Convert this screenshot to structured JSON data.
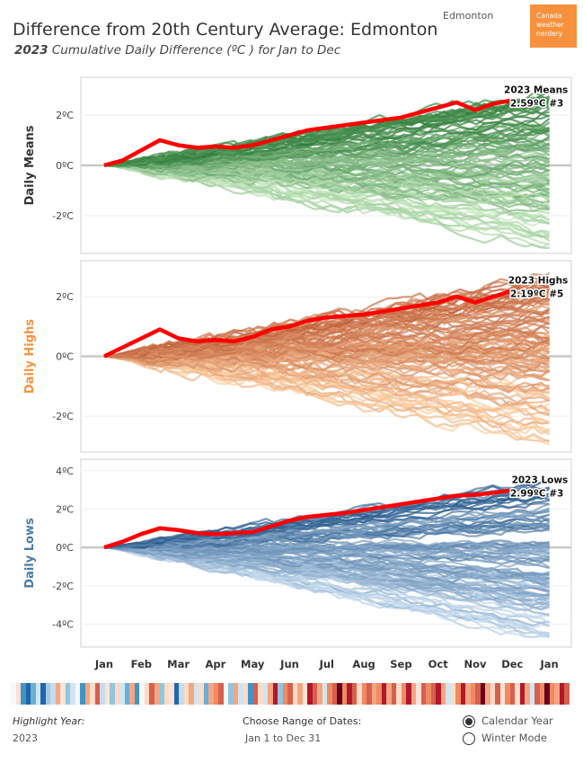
{
  "header": {
    "title": "Difference from 20th Century Average: Edmonton",
    "subtitle_year": "2023",
    "subtitle_rest": "Cumulative Daily Difference (ºC ) for Jan to Dec",
    "city": "Edmonton",
    "brand_lines": [
      "Canada",
      "weather",
      "nerdery"
    ]
  },
  "colors": {
    "means_dark": "#2f7d3a",
    "means_light": "#c7e9c0",
    "highs_dark": "#c0603a",
    "highs_light": "#fdd0a2",
    "lows_dark": "#2c5e8f",
    "lows_light": "#c6dbef",
    "highlight": "#ff0000",
    "highs_label": "#f7913d",
    "lows_label": "#4a7ba6"
  },
  "chart_data": [
    {
      "type": "line",
      "ylabel": "Daily Means",
      "ylim": [
        -3.5,
        3.5
      ],
      "yticks": [
        2,
        0,
        -2
      ],
      "tick_labels": [
        "2ºC",
        "0ºC",
        "-2ºC"
      ],
      "x_months": [
        "Jan",
        "Feb",
        "Mar",
        "Apr",
        "May",
        "Jun",
        "Jul",
        "Aug",
        "Sep",
        "Oct",
        "Nov",
        "Dec",
        "Jan"
      ],
      "highlight": {
        "year": "2023",
        "x": [
          0,
          0.5,
          1,
          1.5,
          2,
          2.5,
          3,
          3.5,
          4,
          4.5,
          5,
          5.5,
          6,
          6.5,
          7,
          7.5,
          8,
          8.5,
          9,
          9.5,
          10,
          10.5,
          11
        ],
        "y": [
          0,
          0.2,
          0.6,
          1.0,
          0.8,
          0.7,
          0.75,
          0.7,
          0.8,
          1.0,
          1.2,
          1.4,
          1.5,
          1.6,
          1.7,
          1.8,
          1.9,
          2.1,
          2.3,
          2.5,
          2.2,
          2.45,
          2.59
        ]
      },
      "annotation": [
        "2023 Means",
        "2.59ºC #3"
      ],
      "band": {
        "final_max": 3.2,
        "final_min": -3.3,
        "count": 110
      }
    },
    {
      "type": "line",
      "ylabel": "Daily Highs",
      "ylim": [
        -3.2,
        3.2
      ],
      "yticks": [
        2,
        0,
        -2
      ],
      "tick_labels": [
        "2ºC",
        "0ºC",
        "-2ºC"
      ],
      "x_months": [
        "Jan",
        "Feb",
        "Mar",
        "Apr",
        "May",
        "Jun",
        "Jul",
        "Aug",
        "Sep",
        "Oct",
        "Nov",
        "Dec",
        "Jan"
      ],
      "highlight": {
        "year": "2023",
        "x": [
          0,
          0.5,
          1,
          1.5,
          2,
          2.5,
          3,
          3.5,
          4,
          4.5,
          5,
          5.5,
          6,
          6.5,
          7,
          7.5,
          8,
          8.5,
          9,
          9.5,
          10,
          10.5,
          11
        ],
        "y": [
          0,
          0.3,
          0.6,
          0.9,
          0.6,
          0.5,
          0.55,
          0.5,
          0.65,
          0.9,
          1.0,
          1.2,
          1.3,
          1.35,
          1.4,
          1.5,
          1.6,
          1.7,
          1.8,
          2.0,
          1.8,
          2.0,
          2.19
        ]
      },
      "annotation": [
        "2023 Highs",
        "2.19ºC #5"
      ],
      "band": {
        "final_max": 2.9,
        "final_min": -3.0,
        "count": 110
      }
    },
    {
      "type": "line",
      "ylabel": "Daily Lows",
      "ylim": [
        -5.2,
        4.6
      ],
      "yticks": [
        4,
        2,
        0,
        -2,
        -4
      ],
      "tick_labels": [
        "4ºC",
        "2ºC",
        "0ºC",
        "-2ºC",
        "-4ºC"
      ],
      "x_months": [
        "Jan",
        "Feb",
        "Mar",
        "Apr",
        "May",
        "Jun",
        "Jul",
        "Aug",
        "Sep",
        "Oct",
        "Nov",
        "Dec",
        "Jan"
      ],
      "highlight": {
        "year": "2023",
        "x": [
          0,
          0.5,
          1,
          1.5,
          2,
          2.5,
          3,
          3.5,
          4,
          4.5,
          5,
          5.5,
          6,
          6.5,
          7,
          7.5,
          8,
          8.5,
          9,
          9.5,
          10,
          10.5,
          11
        ],
        "y": [
          0,
          0.3,
          0.7,
          1.0,
          0.9,
          0.75,
          0.7,
          0.75,
          0.8,
          1.1,
          1.4,
          1.6,
          1.7,
          1.8,
          1.95,
          2.1,
          2.25,
          2.4,
          2.55,
          2.7,
          2.75,
          2.85,
          2.99
        ]
      },
      "annotation": [
        "2023 Lows",
        "2.99ºC #3"
      ],
      "band": {
        "final_max": 3.6,
        "final_min": -5.0,
        "count": 110
      }
    }
  ],
  "stripes": [
    "#f7f7f7",
    "#fde0d2",
    "#4393c3",
    "#2166ac",
    "#6baed6",
    "#d1e5f0",
    "#2166ac",
    "#9ecae1",
    "#c6dbef",
    "#f4a582",
    "#fbe3d6",
    "#92c5de",
    "#d1e5f0",
    "#f7f7f7",
    "#4393c3",
    "#f4a582",
    "#fddbc7",
    "#d6604d",
    "#c6dbef",
    "#fbe3d6",
    "#92c5de",
    "#fddbc7",
    "#d1e5f0",
    "#6baed6",
    "#f4a582",
    "#4393c3",
    "#f7f7f7",
    "#fddbc7",
    "#d6604d",
    "#f4a582",
    "#92c5de",
    "#fddbc7",
    "#fbe3d6",
    "#2166ac",
    "#c6dbef",
    "#fddbc7",
    "#f4a582",
    "#d1e5f0",
    "#fddbc7",
    "#6baed6",
    "#f4a582",
    "#ef8a62",
    "#d6604d",
    "#f7f7f7",
    "#92c5de",
    "#f4a582",
    "#d1e5f0",
    "#fddbc7",
    "#4393c3",
    "#d6604d",
    "#fddbc7",
    "#d1e5f0",
    "#f4a582",
    "#b2182b",
    "#92c5de",
    "#ef8a62",
    "#d6604d",
    "#fddbc7",
    "#f4a582",
    "#fbe3d6",
    "#b2182b",
    "#d6604d",
    "#f4a582",
    "#d1e5f0",
    "#ef8a62",
    "#d6604d",
    "#67001f",
    "#ef8a62",
    "#b2182b",
    "#d6604d",
    "#fddbc7",
    "#ef8a62",
    "#d6604d",
    "#f4a582",
    "#ef8a62",
    "#b2182b",
    "#f4a582",
    "#d6604d",
    "#fddbc7",
    "#ef8a62",
    "#b2182b",
    "#f4a582",
    "#fbe3d6",
    "#d6604d",
    "#ef8a62",
    "#d6604d",
    "#b2182b",
    "#f4a582",
    "#d1e5f0",
    "#fddbc7",
    "#ef8a62",
    "#b2182b",
    "#f4a582",
    "#ef8a62",
    "#d6604d",
    "#67001f",
    "#f4a582",
    "#fddbc7",
    "#d6604d",
    "#fbe3d6",
    "#ef8a62",
    "#d6604d",
    "#fddbc7",
    "#b2182b",
    "#f4a582",
    "#d1e5f0",
    "#d6604d",
    "#ef8a62",
    "#67001f",
    "#ef8a62",
    "#f4a582",
    "#b2182b",
    "#d6604d"
  ],
  "controls": {
    "highlight_label": "Highlight Year:",
    "highlight_value": "2023",
    "range_label": "Choose Range of Dates:",
    "range_value": "Jan 1 to Dec 31",
    "option_calendar": "Calendar Year",
    "option_winter": "Winter Mode"
  }
}
